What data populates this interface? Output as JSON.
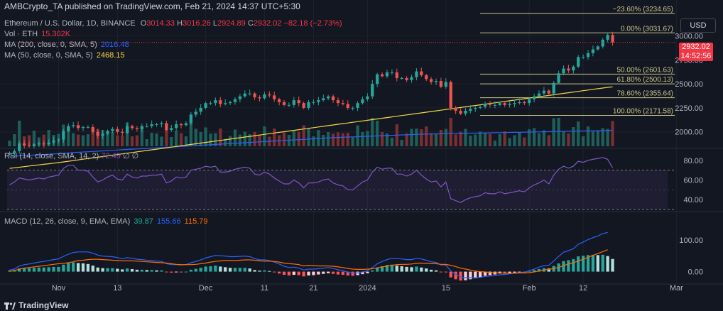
{
  "header": {
    "publisher": "AMBCrypto_TA published on TradingView.com, Feb 21, 2024 14:37 UTC+5:30"
  },
  "legend": {
    "symbol": "Ethereum / U.S. Dollar, 1D, BINANCE",
    "ohlc": {
      "o_label": "O",
      "o": "3014.33",
      "h_label": "H",
      "h": "3016.26",
      "l_label": "L",
      "l": "2924.89",
      "c_label": "C",
      "c": "2932.02",
      "change": "−82.18 (−2.73%)"
    },
    "vol_label": "Vol · ETH",
    "vol_value": "15.302K",
    "ma200_label": "MA (200, close, 0, SMA, 5)",
    "ma200_value": "2016.48",
    "ma50_label": "MA (50, close, 0, SMA, 5)",
    "ma50_value": "2468.15",
    "rsi_label": "RSI (14, close, SMA, 14, 2)",
    "rsi_value": "72.49",
    "rsi_extra": "∅  ∅",
    "macd_label": "MACD (12, 26, close, 9, EMA, EMA)",
    "macd_value": "39.87",
    "macd_signal": "155.66",
    "macd_signal2": "115.79"
  },
  "currency_button": "USD",
  "price_tag": {
    "price": "2932.02",
    "countdown": "14:52:56"
  },
  "footer": {
    "brand": "TradingView"
  },
  "colors": {
    "bg": "#131722",
    "up": "#26a69a",
    "down": "#ef5350",
    "ma200": "#2962ff",
    "ma50": "#f5d547",
    "fib": "#c9c48a",
    "rsi": "#7e57c2",
    "macd": "#2962ff",
    "signal": "#ff6d00",
    "text": "#b2b5be"
  },
  "chart_data": [
    {
      "type": "candlestick",
      "title": "Ethereum / U.S. Dollar, 1D, BINANCE",
      "x_ticks": [
        "Nov",
        "13",
        "Dec",
        "11",
        "21",
        "2024",
        "15",
        "Feb",
        "12",
        "Mar"
      ],
      "y_ticks": [
        2000,
        2250,
        2500,
        2750,
        3000
      ],
      "ylim": [
        1850,
        3300
      ],
      "grid": true,
      "fibonacci": [
        {
          "label": "−23.60% (3234.65)",
          "value": 3234.65
        },
        {
          "label": "0.00% (3031.67)",
          "value": 3031.67
        },
        {
          "label": "50.00% (2601.63)",
          "value": 2601.63
        },
        {
          "label": "61.80% (2500.13)",
          "value": 2500.13
        },
        {
          "label": "78.60% (2355.64)",
          "value": 2355.64
        },
        {
          "label": "100.00% (2171.58)",
          "value": 2171.58
        }
      ],
      "close": [
        1780,
        1800,
        1880,
        1860,
        1850,
        1870,
        1880,
        1870,
        1890,
        1910,
        1920,
        2010,
        2060,
        2070,
        2040,
        2050,
        2050,
        2000,
        1960,
        1980,
        2010,
        2030,
        2000,
        1990,
        2060,
        2040,
        2030,
        2060,
        2060,
        2080,
        2080,
        2090,
        2020,
        2040,
        2080,
        2070,
        2090,
        2180,
        2210,
        2250,
        2300,
        2300,
        2330,
        2290,
        2300,
        2310,
        2340,
        2370,
        2400,
        2400,
        2360,
        2350,
        2390,
        2380,
        2340,
        2310,
        2280,
        2280,
        2330,
        2300,
        2250,
        2310,
        2310,
        2330,
        2350,
        2370,
        2330,
        2300,
        2290,
        2250,
        2250,
        2300,
        2340,
        2370,
        2500,
        2600,
        2580,
        2620,
        2620,
        2560,
        2560,
        2540,
        2570,
        2630,
        2590,
        2550,
        2520,
        2530,
        2470,
        2520,
        2250,
        2220,
        2190,
        2220,
        2240,
        2250,
        2260,
        2290,
        2280,
        2280,
        2300,
        2280,
        2290,
        2300,
        2310,
        2300,
        2340,
        2370,
        2400,
        2430,
        2400,
        2510,
        2610,
        2660,
        2640,
        2680,
        2780,
        2780,
        2820,
        2860,
        2890,
        2960,
        3010,
        2932
      ],
      "ma200": [
        1745,
        1748,
        1750,
        1753,
        1756,
        1758,
        1761,
        1764,
        1767,
        1770,
        1773,
        1777,
        1780,
        1784,
        1787,
        1790,
        1793,
        1796,
        1799,
        1802,
        1805,
        1808,
        1811,
        1814,
        1817,
        1820,
        1822,
        1825,
        1828,
        1831,
        1834,
        1837,
        1840,
        1842,
        1845,
        1848,
        1851,
        1854,
        1857,
        1860,
        1863,
        1866,
        1869,
        1872,
        1875,
        1878,
        1881,
        1884,
        1887,
        1890,
        1893,
        1896,
        1899,
        1902,
        1905,
        1908,
        1911,
        1913,
        1916,
        1919,
        1922,
        1925,
        1928,
        1931,
        1934,
        1937,
        1940,
        1942,
        1944,
        1946,
        1948,
        1950,
        1952,
        1954,
        1956,
        1958,
        1960,
        1962,
        1964,
        1966,
        1968,
        1970,
        1972,
        1974,
        1976,
        1977,
        1978,
        1979,
        1980,
        1981,
        1982,
        1983,
        1984,
        1985,
        1986,
        1987,
        1988,
        1989,
        1990,
        1991,
        1992,
        1993,
        1994,
        1995,
        1996,
        1997,
        1998,
        1999,
        2000,
        2001,
        2002,
        2003,
        2004,
        2005,
        2006,
        2007,
        2008,
        2009,
        2010,
        2011,
        2012,
        2013,
        2014,
        2016.48
      ],
      "ma50": [
        1620,
        1626,
        1632,
        1638,
        1644,
        1650,
        1656,
        1662,
        1668,
        1674,
        1680,
        1687,
        1694,
        1701,
        1708,
        1715,
        1722,
        1729,
        1736,
        1743,
        1750,
        1757,
        1764,
        1771,
        1778,
        1785,
        1792,
        1799,
        1806,
        1813,
        1820,
        1827,
        1834,
        1841,
        1848,
        1855,
        1862,
        1869,
        1876,
        1883,
        1890,
        1897,
        1904,
        1911,
        1918,
        1925,
        1932,
        1939,
        1946,
        1953,
        1960,
        1967,
        1974,
        1981,
        1988,
        1995,
        2002,
        2009,
        2016,
        2023,
        2030,
        2037,
        2044,
        2051,
        2058,
        2065,
        2072,
        2079,
        2086,
        2093,
        2100,
        2107,
        2114,
        2121,
        2128,
        2135,
        2142,
        2149,
        2156,
        2163,
        2170,
        2177,
        2184,
        2191,
        2198,
        2205,
        2212,
        2219,
        2226,
        2233,
        2240,
        2247,
        2254,
        2261,
        2268,
        2275,
        2282,
        2289,
        2296,
        2303,
        2310,
        2317,
        2324,
        2331,
        2338,
        2345,
        2352,
        2359,
        2366,
        2373,
        2380,
        2387,
        2394,
        2401,
        2408,
        2415,
        2422,
        2429,
        2436,
        2443,
        2450,
        2457,
        2464,
        2468.15
      ]
    },
    {
      "type": "line",
      "title": "RSI (14, close, SMA, 14, 2)",
      "y_ticks": [
        40,
        60,
        80
      ],
      "ylim": [
        30,
        90
      ],
      "bands": [
        30,
        70
      ],
      "values": [
        55,
        58,
        62,
        61,
        60,
        61,
        62,
        61,
        63,
        64,
        65,
        72,
        75,
        75,
        70,
        70,
        69,
        63,
        58,
        60,
        63,
        65,
        61,
        60,
        66,
        63,
        62,
        64,
        64,
        65,
        65,
        66,
        57,
        59,
        63,
        62,
        63,
        70,
        71,
        72,
        74,
        73,
        74,
        68,
        68,
        69,
        71,
        72,
        73,
        72,
        66,
        65,
        68,
        66,
        62,
        59,
        56,
        56,
        60,
        57,
        52,
        57,
        57,
        58,
        60,
        61,
        57,
        55,
        54,
        50,
        50,
        54,
        58,
        60,
        68,
        73,
        71,
        72,
        72,
        66,
        66,
        64,
        66,
        70,
        65,
        61,
        58,
        59,
        53,
        58,
        41,
        39,
        37,
        40,
        42,
        43,
        44,
        47,
        46,
        46,
        48,
        46,
        47,
        48,
        49,
        48,
        52,
        55,
        57,
        60,
        56,
        65,
        71,
        74,
        72,
        74,
        79,
        78,
        80,
        81,
        82,
        83,
        81,
        72.49
      ]
    },
    {
      "type": "bar",
      "title": "MACD (12, 26, close, 9, EMA, EMA)",
      "y_ticks": [
        0,
        100
      ],
      "ylim": [
        -30,
        180
      ],
      "histogram": [
        4,
        5,
        10,
        11,
        11,
        12,
        13,
        13,
        14,
        15,
        15,
        22,
        27,
        29,
        27,
        26,
        24,
        19,
        13,
        11,
        11,
        11,
        9,
        7,
        10,
        8,
        6,
        6,
        5,
        5,
        4,
        4,
        -2,
        -3,
        -1,
        -1,
        0,
        6,
        9,
        12,
        16,
        17,
        19,
        16,
        14,
        12,
        12,
        12,
        12,
        10,
        5,
        3,
        4,
        2,
        -2,
        -6,
        -10,
        -12,
        -10,
        -11,
        -15,
        -12,
        -11,
        -9,
        -7,
        -5,
        -7,
        -9,
        -10,
        -12,
        -13,
        -11,
        -8,
        -5,
        4,
        13,
        17,
        21,
        22,
        19,
        17,
        15,
        14,
        16,
        13,
        10,
        6,
        4,
        -2,
        -2,
        -18,
        -24,
        -28,
        -27,
        -24,
        -21,
        -18,
        -13,
        -11,
        -9,
        -6,
        -6,
        -4,
        -3,
        -2,
        -2,
        2,
        5,
        8,
        11,
        10,
        18,
        26,
        33,
        36,
        39,
        48,
        50,
        52,
        53,
        52,
        53,
        49,
        39.87
      ],
      "macd_line": [
        5,
        8,
        18,
        22,
        24,
        27,
        30,
        32,
        35,
        38,
        40,
        48,
        55,
        60,
        62,
        62,
        62,
        58,
        52,
        49,
        48,
        47,
        44,
        41,
        44,
        42,
        39,
        38,
        36,
        35,
        33,
        32,
        25,
        22,
        22,
        21,
        22,
        28,
        32,
        37,
        43,
        47,
        51,
        50,
        49,
        47,
        47,
        48,
        49,
        47,
        41,
        37,
        37,
        35,
        30,
        24,
        17,
        13,
        14,
        11,
        5,
        8,
        8,
        9,
        11,
        13,
        10,
        6,
        3,
        -2,
        -5,
        -4,
        -1,
        3,
        13,
        25,
        32,
        38,
        42,
        41,
        40,
        38,
        38,
        42,
        40,
        36,
        31,
        29,
        21,
        21,
        2,
        -8,
        -17,
        -19,
        -19,
        -19,
        -18,
        -15,
        -14,
        -12,
        -10,
        -9,
        -7,
        -5,
        -3,
        -2,
        3,
        8,
        14,
        19,
        20,
        34,
        48,
        61,
        66,
        72,
        86,
        93,
        101,
        107,
        112,
        120,
        123,
        155.66
      ],
      "signal_line": [
        1,
        3,
        8,
        11,
        13,
        15,
        17,
        19,
        21,
        23,
        25,
        26,
        28,
        31,
        35,
        36,
        38,
        39,
        39,
        38,
        37,
        36,
        35,
        34,
        34,
        34,
        33,
        32,
        31,
        30,
        29,
        28,
        27,
        25,
        23,
        22,
        22,
        22,
        23,
        25,
        27,
        30,
        32,
        34,
        35,
        35,
        35,
        36,
        37,
        37,
        36,
        34,
        33,
        33,
        32,
        30,
        27,
        25,
        24,
        22,
        18,
        20,
        19,
        18,
        18,
        18,
        17,
        15,
        13,
        10,
        8,
        7,
        7,
        8,
        9,
        12,
        15,
        17,
        20,
        22,
        23,
        23,
        24,
        26,
        27,
        26,
        25,
        25,
        23,
        23,
        20,
        16,
        11,
        8,
        5,
        2,
        0,
        -1,
        -3,
        -4,
        -4,
        -5,
        -5,
        -5,
        -4,
        -4,
        -3,
        -1,
        2,
        5,
        7,
        10,
        13,
        19,
        24,
        28,
        34,
        39,
        45,
        51,
        57,
        63,
        69,
        115.79
      ]
    }
  ]
}
